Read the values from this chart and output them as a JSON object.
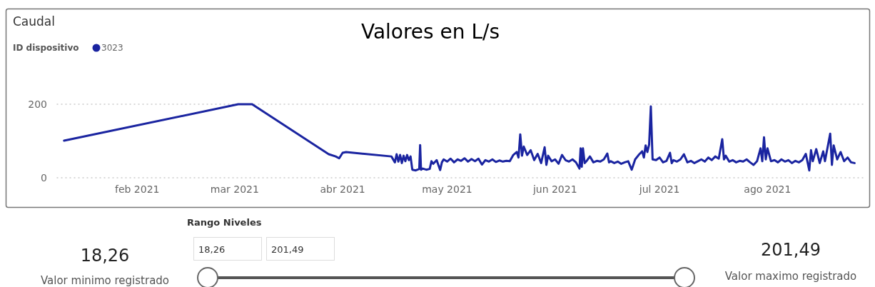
{
  "chart_data": [
    {
      "type": "line",
      "title": "Caudal",
      "subtitle": "Valores en L/s",
      "legend_title": "ID dispositivo",
      "legend": "top left",
      "grid": "y",
      "line_style": "solid",
      "xlim": [
        "2021-01-09",
        "2021-08-29"
      ],
      "ylim": [
        0,
        200
      ],
      "yticks": [
        0,
        200
      ],
      "xticks": [
        {
          "value": "2021-02-01",
          "label": "feb 2021"
        },
        {
          "value": "2021-03-01",
          "label": "mar 2021"
        },
        {
          "value": "2021-04-01",
          "label": "abr 2021"
        },
        {
          "value": "2021-05-01",
          "label": "may 2021"
        },
        {
          "value": "2021-06-01",
          "label": "jun 2021"
        },
        {
          "value": "2021-07-01",
          "label": "jul 2021"
        },
        {
          "value": "2021-08-01",
          "label": "ago 2021"
        }
      ],
      "series": [
        {
          "name": "3023",
          "color": "#1a24a0",
          "x": [
            "2021-01-11",
            "2021-03-02",
            "2021-03-06",
            "2021-03-28",
            "2021-03-30",
            "2021-03-31",
            "2021-04-01",
            "2021-04-02",
            "2021-04-15",
            "2021-04-16",
            "2021-04-16T12:00",
            "2021-04-17",
            "2021-04-17T12:00",
            "2021-04-18",
            "2021-04-18T12:00",
            "2021-04-19",
            "2021-04-19T12:00",
            "2021-04-20",
            "2021-04-20T12:00",
            "2021-04-21",
            "2021-04-22",
            "2021-04-23",
            "2021-04-23T06:00",
            "2021-04-23T12:00",
            "2021-04-24",
            "2021-04-25",
            "2021-04-26",
            "2021-04-26T12:00",
            "2021-04-27",
            "2021-04-28",
            "2021-04-29",
            "2021-04-29T12:00",
            "2021-04-30",
            "2021-05-01",
            "2021-05-02",
            "2021-05-03",
            "2021-05-04",
            "2021-05-05",
            "2021-05-06",
            "2021-05-07",
            "2021-05-08",
            "2021-05-09",
            "2021-05-10",
            "2021-05-11",
            "2021-05-12",
            "2021-05-13",
            "2021-05-14",
            "2021-05-15",
            "2021-05-16",
            "2021-05-17",
            "2021-05-18",
            "2021-05-19",
            "2021-05-20",
            "2021-05-21",
            "2021-05-21T12:00",
            "2021-05-22",
            "2021-05-22T12:00",
            "2021-05-23",
            "2021-05-24",
            "2021-05-25",
            "2021-05-26",
            "2021-05-27",
            "2021-05-28",
            "2021-05-29",
            "2021-05-29T12:00",
            "2021-05-30",
            "2021-05-31",
            "2021-06-01",
            "2021-06-02",
            "2021-06-03",
            "2021-06-04",
            "2021-06-05",
            "2021-06-06",
            "2021-06-07",
            "2021-06-08",
            "2021-06-08T08:00",
            "2021-06-08T16:00",
            "2021-06-09",
            "2021-06-09T12:00",
            "2021-06-10",
            "2021-06-11",
            "2021-06-12",
            "2021-06-13",
            "2021-06-14",
            "2021-06-15",
            "2021-06-16",
            "2021-06-16T12:00",
            "2021-06-17",
            "2021-06-18",
            "2021-06-19",
            "2021-06-20",
            "2021-06-21",
            "2021-06-22",
            "2021-06-23",
            "2021-06-24",
            "2021-06-25",
            "2021-06-26",
            "2021-06-26T12:00",
            "2021-06-27",
            "2021-06-27T12:00",
            "2021-06-28",
            "2021-06-28T12:00",
            "2021-06-29",
            "2021-06-30",
            "2021-07-01",
            "2021-07-02",
            "2021-07-03",
            "2021-07-04",
            "2021-07-04T12:00",
            "2021-07-05",
            "2021-07-06",
            "2021-07-07",
            "2021-07-08",
            "2021-07-09",
            "2021-07-10",
            "2021-07-11",
            "2021-07-12",
            "2021-07-13",
            "2021-07-14",
            "2021-07-15",
            "2021-07-16",
            "2021-07-17",
            "2021-07-18",
            "2021-07-19",
            "2021-07-19T12:00",
            "2021-07-20",
            "2021-07-21",
            "2021-07-22",
            "2021-07-23",
            "2021-07-24",
            "2021-07-25",
            "2021-07-26",
            "2021-07-27",
            "2021-07-28",
            "2021-07-29",
            "2021-07-30",
            "2021-07-30T12:00",
            "2021-07-31",
            "2021-07-31T12:00",
            "2021-08-01",
            "2021-08-02",
            "2021-08-03",
            "2021-08-04",
            "2021-08-05",
            "2021-08-06",
            "2021-08-07",
            "2021-08-08",
            "2021-08-09",
            "2021-08-10",
            "2021-08-11",
            "2021-08-12",
            "2021-08-13",
            "2021-08-13T12:00",
            "2021-08-14",
            "2021-08-15",
            "2021-08-16",
            "2021-08-17",
            "2021-08-17T12:00",
            "2021-08-19",
            "2021-08-19T12:00",
            "2021-08-20",
            "2021-08-21",
            "2021-08-22",
            "2021-08-23",
            "2021-08-24",
            "2021-08-25",
            "2021-08-26"
          ],
          "values": [
            101,
            200,
            200,
            64,
            58,
            53,
            68,
            70,
            58,
            42,
            64,
            44,
            62,
            40,
            60,
            45,
            62,
            48,
            58,
            22,
            20,
            24,
            89,
            22,
            25,
            22,
            24,
            45,
            38,
            48,
            21,
            42,
            50,
            44,
            52,
            42,
            50,
            46,
            53,
            44,
            51,
            45,
            52,
            36,
            48,
            44,
            50,
            43,
            47,
            44,
            46,
            45,
            62,
            70,
            55,
            118,
            60,
            85,
            62,
            75,
            48,
            65,
            40,
            83,
            35,
            60,
            45,
            50,
            38,
            62,
            48,
            44,
            50,
            42,
            25,
            80,
            30,
            80,
            40,
            45,
            58,
            42,
            46,
            44,
            50,
            66,
            42,
            45,
            40,
            44,
            38,
            42,
            45,
            22,
            50,
            62,
            72,
            55,
            88,
            70,
            90,
            194,
            50,
            48,
            55,
            42,
            46,
            68,
            40,
            48,
            44,
            50,
            64,
            42,
            46,
            40,
            45,
            50,
            44,
            55,
            48,
            58,
            52,
            105,
            50,
            60,
            44,
            48,
            42,
            46,
            44,
            50,
            42,
            35,
            45,
            80,
            45,
            110,
            50,
            80,
            45,
            48,
            42,
            50,
            44,
            48,
            40,
            46,
            42,
            48,
            65,
            20,
            75,
            45,
            78,
            40,
            72,
            45,
            120,
            35,
            88,
            50,
            70,
            45,
            55,
            42,
            40
          ]
        }
      ]
    },
    {
      "type": "other",
      "title": "Rango Niveles",
      "annotations": [
        "18,26",
        "Valor minimo registrado",
        "18,26",
        "201,49",
        "201,49",
        "Valor maximo registrado"
      ]
    }
  ]
}
